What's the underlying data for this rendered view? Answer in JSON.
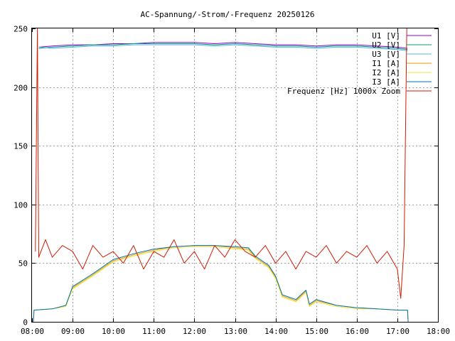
{
  "chart_data": {
    "type": "line",
    "title": "AC-Spannung/-Strom/-Frequenz 20250126",
    "xlabel": "",
    "ylabel": "",
    "ylim": [
      0,
      250
    ],
    "xlim": [
      "08:00",
      "18:00"
    ],
    "x_ticks": [
      "08:00",
      "09:00",
      "10:00",
      "11:00",
      "12:00",
      "13:00",
      "14:00",
      "15:00",
      "16:00",
      "17:00",
      "18:00"
    ],
    "y_ticks": [
      "0",
      "50",
      "100",
      "150",
      "200",
      "250"
    ],
    "grid": true,
    "legend_position": "top-right",
    "series": [
      {
        "name": "U1 [V]",
        "color": "#9400d3",
        "points": [
          [
            "08:10",
            234
          ],
          [
            "08:30",
            235
          ],
          [
            "09:00",
            236
          ],
          [
            "09:30",
            236
          ],
          [
            "10:00",
            237
          ],
          [
            "10:30",
            237
          ],
          [
            "11:00",
            238
          ],
          [
            "11:30",
            238
          ],
          [
            "12:00",
            238
          ],
          [
            "12:30",
            237
          ],
          [
            "13:00",
            238
          ],
          [
            "13:30",
            237
          ],
          [
            "14:00",
            236
          ],
          [
            "14:30",
            236
          ],
          [
            "15:00",
            235
          ],
          [
            "15:30",
            236
          ],
          [
            "16:00",
            236
          ],
          [
            "16:30",
            235
          ],
          [
            "17:00",
            234
          ],
          [
            "17:15",
            233
          ]
        ]
      },
      {
        "name": "U2 [V]",
        "color": "#009e73",
        "points": [
          [
            "08:10",
            233
          ],
          [
            "08:30",
            234
          ],
          [
            "09:00",
            235
          ],
          [
            "09:30",
            236
          ],
          [
            "10:00",
            236
          ],
          [
            "10:30",
            237
          ],
          [
            "11:00",
            237
          ],
          [
            "11:30",
            237
          ],
          [
            "12:00",
            237
          ],
          [
            "12:30",
            236
          ],
          [
            "13:00",
            237
          ],
          [
            "13:30",
            236
          ],
          [
            "14:00",
            235
          ],
          [
            "14:30",
            235
          ],
          [
            "15:00",
            234
          ],
          [
            "15:30",
            235
          ],
          [
            "16:00",
            235
          ],
          [
            "16:30",
            234
          ],
          [
            "17:00",
            233
          ],
          [
            "17:15",
            232
          ]
        ]
      },
      {
        "name": "U3 [V]",
        "color": "#56b4e9",
        "points": [
          [
            "08:10",
            234
          ],
          [
            "08:30",
            233
          ],
          [
            "09:00",
            234
          ],
          [
            "09:30",
            235
          ],
          [
            "10:00",
            235
          ],
          [
            "10:30",
            236
          ],
          [
            "11:00",
            236
          ],
          [
            "11:30",
            236
          ],
          [
            "12:00",
            236
          ],
          [
            "12:30",
            235
          ],
          [
            "13:00",
            236
          ],
          [
            "13:30",
            235
          ],
          [
            "14:00",
            234
          ],
          [
            "14:30",
            234
          ],
          [
            "15:00",
            233
          ],
          [
            "15:30",
            234
          ],
          [
            "16:00",
            234
          ],
          [
            "16:30",
            233
          ],
          [
            "17:00",
            232
          ],
          [
            "17:15",
            231
          ]
        ]
      },
      {
        "name": "I1 [A]",
        "color": "#e69f00",
        "points": [
          [
            "08:02",
            0
          ],
          [
            "08:03",
            10
          ],
          [
            "08:30",
            11
          ],
          [
            "08:50",
            14
          ],
          [
            "09:00",
            29
          ],
          [
            "09:30",
            40
          ],
          [
            "10:00",
            52
          ],
          [
            "10:30",
            57
          ],
          [
            "11:00",
            61
          ],
          [
            "11:30",
            64
          ],
          [
            "12:00",
            65
          ],
          [
            "12:30",
            65
          ],
          [
            "13:00",
            63
          ],
          [
            "13:20",
            62
          ],
          [
            "13:30",
            55
          ],
          [
            "13:50",
            47
          ],
          [
            "14:00",
            38
          ],
          [
            "14:10",
            22
          ],
          [
            "14:30",
            18
          ],
          [
            "14:45",
            26
          ],
          [
            "14:50",
            14
          ],
          [
            "15:00",
            18
          ],
          [
            "15:30",
            14
          ],
          [
            "16:00",
            12
          ],
          [
            "16:30",
            11
          ],
          [
            "17:00",
            10
          ],
          [
            "17:15",
            10
          ],
          [
            "17:16",
            0
          ]
        ]
      },
      {
        "name": "I2 [A]",
        "color": "#f0e442",
        "points": [
          [
            "08:02",
            0
          ],
          [
            "08:03",
            10
          ],
          [
            "08:30",
            11
          ],
          [
            "08:50",
            13
          ],
          [
            "09:00",
            28
          ],
          [
            "09:30",
            39
          ],
          [
            "10:00",
            51
          ],
          [
            "10:30",
            56
          ],
          [
            "11:00",
            60
          ],
          [
            "11:30",
            63
          ],
          [
            "12:00",
            64
          ],
          [
            "12:30",
            64
          ],
          [
            "13:00",
            62
          ],
          [
            "13:20",
            61
          ],
          [
            "13:30",
            54
          ],
          [
            "13:50",
            46
          ],
          [
            "14:00",
            37
          ],
          [
            "14:10",
            21
          ],
          [
            "14:30",
            17
          ],
          [
            "14:45",
            25
          ],
          [
            "14:50",
            13
          ],
          [
            "15:00",
            17
          ],
          [
            "15:30",
            13
          ],
          [
            "16:00",
            11
          ],
          [
            "16:30",
            11
          ],
          [
            "17:00",
            10
          ],
          [
            "17:15",
            10
          ],
          [
            "17:16",
            0
          ]
        ]
      },
      {
        "name": "I3 [A]",
        "color": "#0072b2",
        "points": [
          [
            "08:02",
            0
          ],
          [
            "08:03",
            10
          ],
          [
            "08:30",
            11
          ],
          [
            "08:50",
            14
          ],
          [
            "09:00",
            30
          ],
          [
            "09:30",
            41
          ],
          [
            "10:00",
            53
          ],
          [
            "10:30",
            58
          ],
          [
            "11:00",
            62
          ],
          [
            "11:30",
            64
          ],
          [
            "12:00",
            65
          ],
          [
            "12:30",
            65
          ],
          [
            "13:00",
            64
          ],
          [
            "13:20",
            63
          ],
          [
            "13:30",
            56
          ],
          [
            "13:50",
            48
          ],
          [
            "14:00",
            39
          ],
          [
            "14:10",
            23
          ],
          [
            "14:30",
            19
          ],
          [
            "14:45",
            27
          ],
          [
            "14:50",
            15
          ],
          [
            "15:00",
            19
          ],
          [
            "15:30",
            14
          ],
          [
            "16:00",
            12
          ],
          [
            "16:30",
            11
          ],
          [
            "17:00",
            10
          ],
          [
            "17:15",
            10
          ],
          [
            "17:16",
            0
          ]
        ]
      },
      {
        "name": "Frequenz [Hz] 1000x Zoom",
        "color": "#d11a00",
        "points": [
          [
            "08:05",
            60
          ],
          [
            "08:08",
            250
          ],
          [
            "08:10",
            55
          ],
          [
            "08:20",
            70
          ],
          [
            "08:30",
            55
          ],
          [
            "08:45",
            65
          ],
          [
            "09:00",
            60
          ],
          [
            "09:15",
            45
          ],
          [
            "09:30",
            65
          ],
          [
            "09:45",
            55
          ],
          [
            "10:00",
            60
          ],
          [
            "10:15",
            50
          ],
          [
            "10:30",
            65
          ],
          [
            "10:45",
            45
          ],
          [
            "11:00",
            60
          ],
          [
            "11:15",
            55
          ],
          [
            "11:30",
            70
          ],
          [
            "11:45",
            50
          ],
          [
            "12:00",
            60
          ],
          [
            "12:15",
            45
          ],
          [
            "12:30",
            65
          ],
          [
            "12:45",
            55
          ],
          [
            "13:00",
            70
          ],
          [
            "13:15",
            60
          ],
          [
            "13:30",
            55
          ],
          [
            "13:45",
            65
          ],
          [
            "14:00",
            50
          ],
          [
            "14:15",
            60
          ],
          [
            "14:30",
            45
          ],
          [
            "14:45",
            60
          ],
          [
            "15:00",
            55
          ],
          [
            "15:15",
            65
          ],
          [
            "15:30",
            50
          ],
          [
            "15:45",
            60
          ],
          [
            "16:00",
            55
          ],
          [
            "16:15",
            65
          ],
          [
            "16:30",
            50
          ],
          [
            "16:45",
            60
          ],
          [
            "17:00",
            45
          ],
          [
            "17:05",
            20
          ],
          [
            "17:10",
            65
          ],
          [
            "17:14",
            250
          ]
        ]
      }
    ]
  }
}
